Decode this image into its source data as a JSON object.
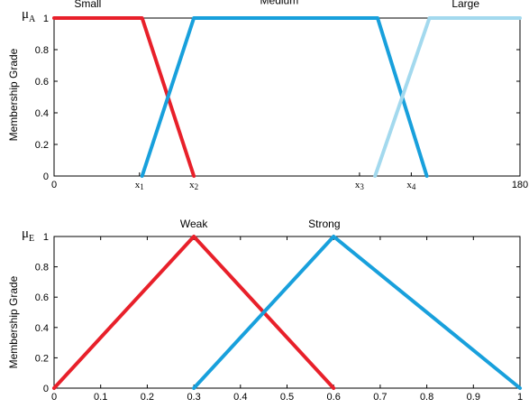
{
  "chart_data": [
    {
      "type": "line",
      "y_symbol": "μ",
      "y_symbol_sub": "A",
      "ylabel": "Membership Grade",
      "xlim": [
        0,
        180
      ],
      "ylim": [
        0,
        1
      ],
      "x_tick_labels": [
        {
          "value": 0,
          "label": "0"
        },
        {
          "value": 33,
          "label": "x",
          "sub": "1"
        },
        {
          "value": 54,
          "label": "x",
          "sub": "2"
        },
        {
          "value": 118,
          "label": "x",
          "sub": "3"
        },
        {
          "value": 138,
          "label": "x",
          "sub": "4"
        },
        {
          "value": 180,
          "label": "180"
        }
      ],
      "y_ticks": [
        0,
        0.2,
        0.4,
        0.6,
        0.8,
        1
      ],
      "y_tick_labels": [
        "0",
        "0.2",
        "0.4",
        "0.6",
        "0.8",
        "1"
      ],
      "series": [
        {
          "name": "Small",
          "color": "#e8202a",
          "x": [
            0,
            34,
            54
          ],
          "y": [
            1,
            1,
            0
          ],
          "label_at": [
            13,
            1.07
          ]
        },
        {
          "name": "Medium",
          "color": "#18a0dc",
          "x": [
            34,
            54,
            125,
            144
          ],
          "y": [
            0,
            1,
            1,
            0
          ],
          "label_at": [
            87,
            1.09
          ]
        },
        {
          "name": "Large",
          "color": "#a3d9ee",
          "x": [
            124,
            145,
            180
          ],
          "y": [
            0,
            1,
            1
          ],
          "label_at": [
            159,
            1.07
          ]
        }
      ]
    },
    {
      "type": "line",
      "y_symbol": "μ",
      "y_symbol_sub": "E",
      "ylabel": "Membership Grade",
      "xlim": [
        0,
        1
      ],
      "ylim": [
        0,
        1
      ],
      "x_ticks": [
        0,
        0.1,
        0.2,
        0.3,
        0.4,
        0.5,
        0.6,
        0.7,
        0.8,
        0.9,
        1
      ],
      "x_tick_labels": [
        "0",
        "0.1",
        "0.2",
        "0.3",
        "0.4",
        "0.5",
        "0.6",
        "0.7",
        "0.8",
        "0.9",
        "1"
      ],
      "y_ticks": [
        0,
        0.2,
        0.4,
        0.6,
        0.8,
        1
      ],
      "y_tick_labels": [
        "0",
        "0.2",
        "0.4",
        "0.6",
        "0.8",
        "1"
      ],
      "series": [
        {
          "name": "Weak",
          "color": "#e8202a",
          "x": [
            0,
            0.3,
            0.6
          ],
          "y": [
            0,
            1,
            0
          ],
          "label_at": [
            0.3,
            1.06
          ]
        },
        {
          "name": "Strong",
          "color": "#18a0dc",
          "x": [
            0.3,
            0.6,
            1
          ],
          "y": [
            0,
            1,
            0
          ],
          "label_at": [
            0.58,
            1.06
          ]
        }
      ]
    }
  ]
}
